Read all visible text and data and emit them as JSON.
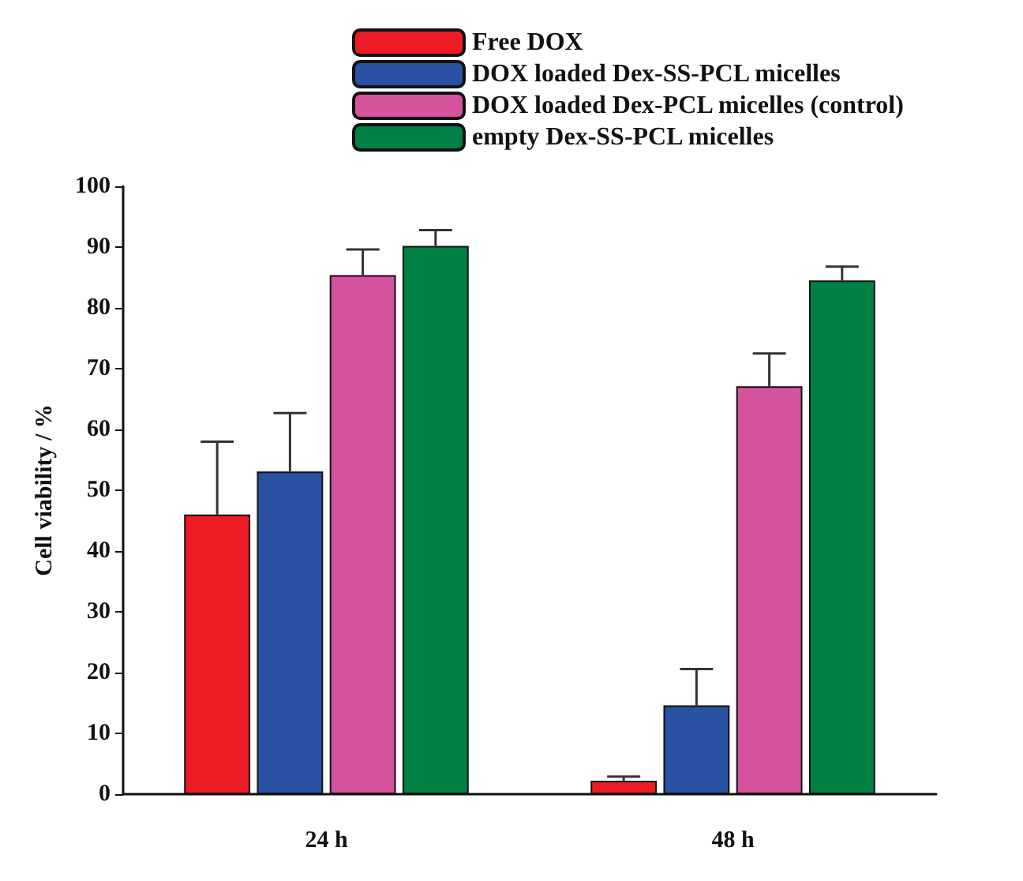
{
  "chart_data": {
    "type": "bar",
    "categories": [
      "24 h",
      "48 h"
    ],
    "ylabel": "Cell viability / %",
    "ylim": [
      0,
      100
    ],
    "yticks": [
      0,
      10,
      20,
      30,
      40,
      50,
      60,
      70,
      80,
      90,
      100
    ],
    "grid": false,
    "legend": "top",
    "series": [
      {
        "name": "Free DOX",
        "color": "#ed1c24",
        "values": [
          46.0,
          2.2
        ],
        "errors": [
          12,
          0.7
        ]
      },
      {
        "name": "DOX loaded Dex-SS-PCL micelles",
        "color": "#2a50a1",
        "values": [
          53.1,
          14.6
        ],
        "errors": [
          9.6,
          6
        ]
      },
      {
        "name": "DOX loaded Dex-PCL micelles (control)",
        "color": "#d5529d",
        "values": [
          85.4,
          67.1
        ],
        "errors": [
          4.2,
          5.4
        ]
      },
      {
        "name": "empty Dex-SS-PCL micelles",
        "color": "#008043",
        "values": [
          90.2,
          84.5
        ],
        "errors": [
          2.6,
          2.3
        ]
      }
    ]
  }
}
